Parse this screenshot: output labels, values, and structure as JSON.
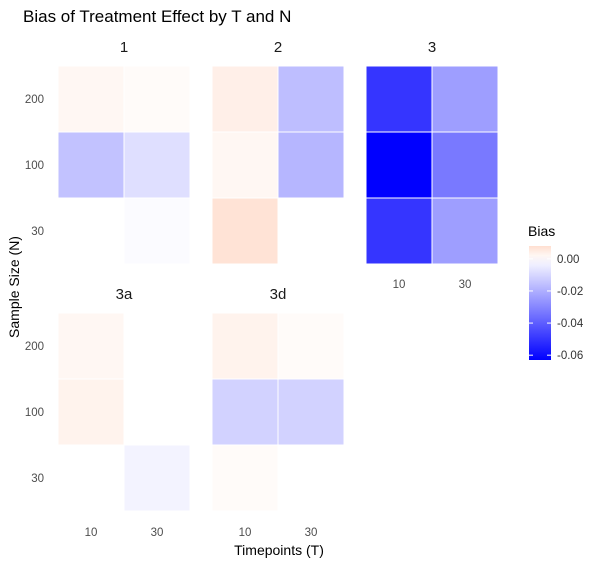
{
  "chart_data": {
    "type": "heatmap",
    "title": "Bias of Treatment Effect by T and N",
    "xlabel": "Timepoints (T)",
    "ylabel": "Sample Size (N)",
    "x_categories": [
      "10",
      "30"
    ],
    "y_categories": [
      "30",
      "100",
      "200"
    ],
    "color_scale": {
      "low_color": "#0000ff",
      "mid_color": "#ffffff",
      "high_color": "#ffdfd0",
      "min": -0.063,
      "mid": 0.0,
      "max": 0.008
    },
    "legend": {
      "title": "Bias",
      "ticks": [
        "0.00",
        "-0.02",
        "-0.04",
        "-0.06"
      ],
      "tick_values": [
        0.0,
        -0.02,
        -0.04,
        -0.06
      ],
      "placement": "right"
    },
    "panels": [
      {
        "name": "1",
        "cells": [
          {
            "N": "200",
            "T": "10",
            "bias": 0.002
          },
          {
            "N": "200",
            "T": "30",
            "bias": 0.001
          },
          {
            "N": "100",
            "T": "10",
            "bias": -0.015
          },
          {
            "N": "100",
            "T": "30",
            "bias": -0.008
          },
          {
            "N": "30",
            "T": "10",
            "bias": 0.0
          },
          {
            "N": "30",
            "T": "30",
            "bias": -0.001
          }
        ]
      },
      {
        "name": "2",
        "cells": [
          {
            "N": "200",
            "T": "10",
            "bias": 0.004
          },
          {
            "N": "200",
            "T": "30",
            "bias": -0.016
          },
          {
            "N": "100",
            "T": "10",
            "bias": 0.002
          },
          {
            "N": "100",
            "T": "30",
            "bias": -0.018
          },
          {
            "N": "30",
            "T": "10",
            "bias": 0.007
          }
        ]
      },
      {
        "name": "3",
        "cells": [
          {
            "N": "200",
            "T": "10",
            "bias": -0.05
          },
          {
            "N": "200",
            "T": "30",
            "bias": -0.024
          },
          {
            "N": "100",
            "T": "10",
            "bias": -0.063
          },
          {
            "N": "100",
            "T": "30",
            "bias": -0.033
          },
          {
            "N": "30",
            "T": "10",
            "bias": -0.05
          },
          {
            "N": "30",
            "T": "30",
            "bias": -0.024
          }
        ]
      },
      {
        "name": "3a",
        "cells": [
          {
            "N": "200",
            "T": "10",
            "bias": 0.002
          },
          {
            "N": "200",
            "T": "30",
            "bias": 0.0
          },
          {
            "N": "100",
            "T": "10",
            "bias": 0.003
          },
          {
            "N": "100",
            "T": "30",
            "bias": 0.0
          },
          {
            "N": "30",
            "T": "10",
            "bias": 0.0
          },
          {
            "N": "30",
            "T": "30",
            "bias": -0.003
          }
        ]
      },
      {
        "name": "3d",
        "cells": [
          {
            "N": "200",
            "T": "10",
            "bias": 0.003
          },
          {
            "N": "200",
            "T": "30",
            "bias": 0.001
          },
          {
            "N": "100",
            "T": "10",
            "bias": -0.011
          },
          {
            "N": "100",
            "T": "30",
            "bias": -0.011
          },
          {
            "N": "30",
            "T": "10",
            "bias": 0.001
          },
          {
            "N": "30",
            "T": "30",
            "bias": 0.0
          }
        ]
      }
    ]
  }
}
